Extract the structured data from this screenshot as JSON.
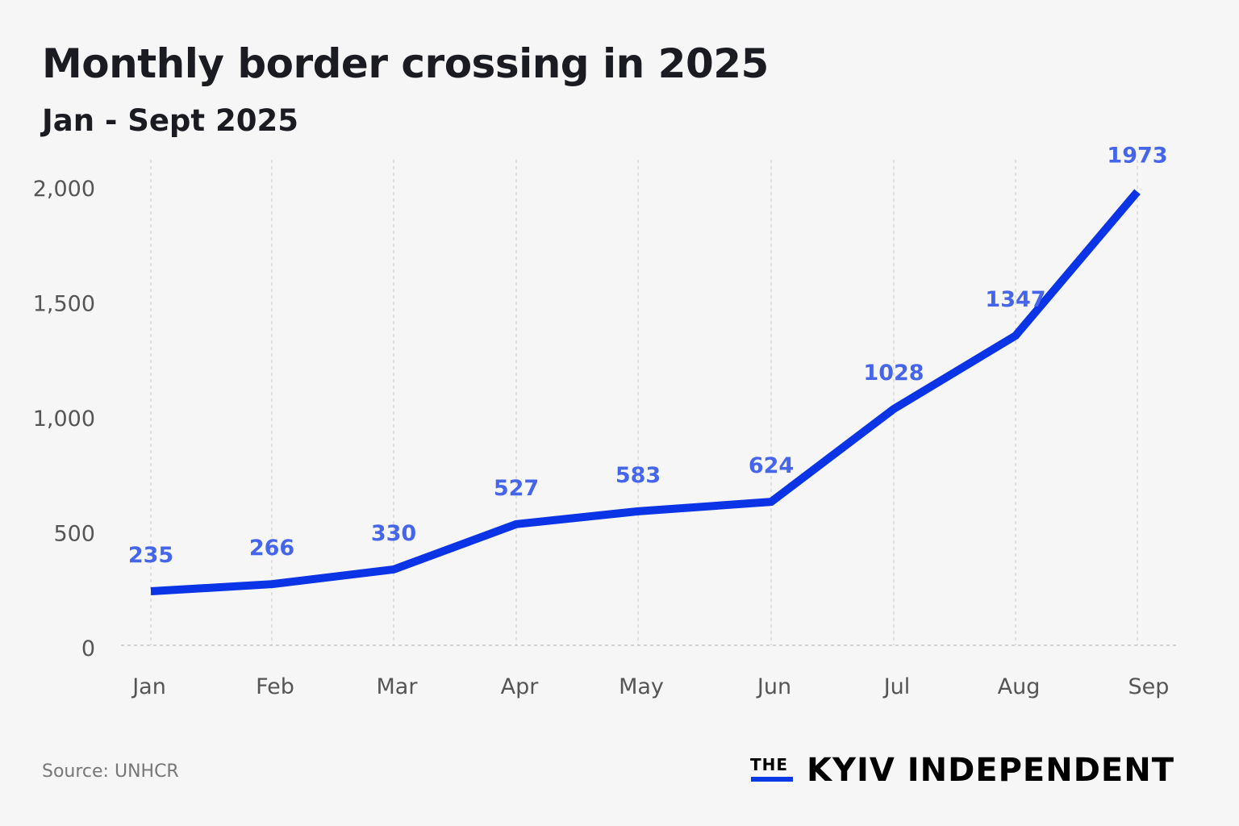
{
  "title": "Monthly border crossing in 2025",
  "subtitle": "Jan - Sept 2025",
  "source": "Source: UNHCR",
  "logo": {
    "prefix": "THE",
    "name": "KYIV INDEPENDENT"
  },
  "colors": {
    "line": "#0a34e6",
    "data_label": "#4566ea",
    "axis_text": "#555555",
    "grid": "#c8c8c8",
    "background": "#f6f6f6"
  },
  "chart_data": {
    "type": "line",
    "title": "Monthly border crossing in 2025",
    "subtitle": "Jan - Sept 2025",
    "categories": [
      "Jan",
      "Feb",
      "Mar",
      "Apr",
      "May",
      "Jun",
      "Jul",
      "Aug",
      "Sep"
    ],
    "values": [
      235,
      266,
      330,
      527,
      583,
      624,
      1028,
      1347,
      1973
    ],
    "data_labels": [
      "235",
      "266",
      "330",
      "527",
      "583",
      "624",
      "1028",
      "1347",
      "1973"
    ],
    "ylim": [
      0,
      2000
    ],
    "yticks": [
      0,
      500,
      1000,
      1500,
      2000
    ],
    "ytick_labels": [
      "0",
      "500",
      "1,000",
      "1,500",
      "2,000"
    ],
    "grid": "vertical dashed",
    "xlabel": "",
    "ylabel": ""
  }
}
